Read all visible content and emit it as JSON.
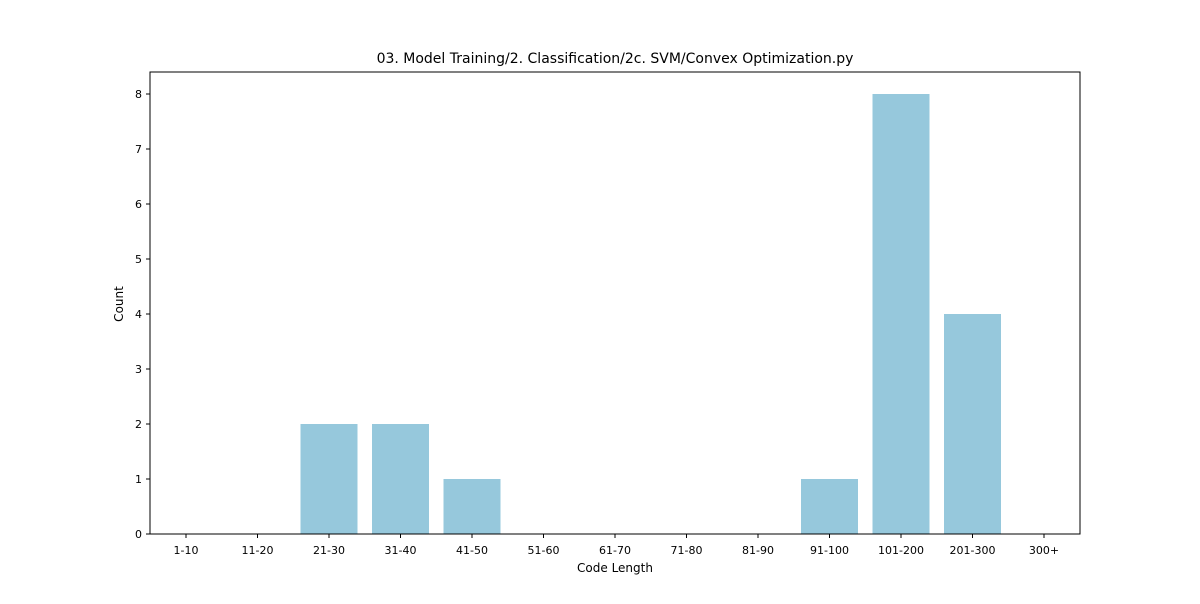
{
  "chart_data": {
    "type": "bar",
    "title": "03. Model Training/2. Classification/2c. SVM/Convex Optimization.py",
    "xlabel": "Code Length",
    "ylabel": "Count",
    "categories": [
      "1-10",
      "11-20",
      "21-30",
      "31-40",
      "41-50",
      "51-60",
      "61-70",
      "71-80",
      "81-90",
      "91-100",
      "101-200",
      "201-300",
      "300+"
    ],
    "values": [
      0,
      0,
      2,
      2,
      1,
      0,
      0,
      0,
      0,
      1,
      8,
      4,
      0
    ],
    "ylim": [
      0,
      8.4
    ],
    "yticks": [
      0,
      1,
      2,
      3,
      4,
      5,
      6,
      7,
      8
    ],
    "grid": false,
    "legend": "none",
    "bar_color": "#96c8dc"
  }
}
